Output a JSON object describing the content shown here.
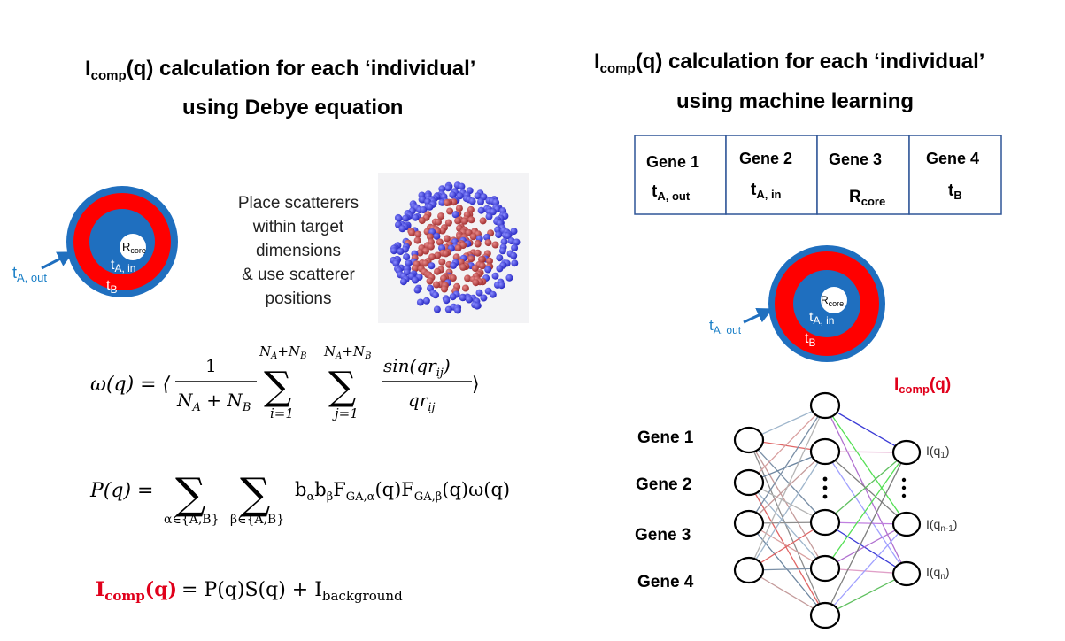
{
  "left_panel": {
    "title": {
      "line1": {
        "main": "I",
        "sub": "comp",
        "rest": "(q) calculation for each ‘individual’"
      },
      "line2": "using Debye equation"
    },
    "place_text": [
      "Place scatterers",
      "within target",
      "dimensions",
      "& use scatterer",
      "positions"
    ],
    "shell_labels": {
      "core": {
        "main": "R",
        "sub": "core"
      },
      "t_a_in": {
        "main": "t",
        "sub": "A, in"
      },
      "t_b": {
        "main": "t",
        "sub": "B"
      },
      "t_a_out": {
        "main": "t",
        "sub": "A, out"
      }
    },
    "equations": {
      "omega": {
        "lhs": "ω(q) = ⟨",
        "frac_num": "1",
        "frac_den": {
          "n_a": "N",
          "a_sub": "A",
          "plus": " + N",
          "b_sub": "B"
        },
        "sum_upper": "N",
        "sum_upper_a": "A",
        "sum_upper_plus": "+N",
        "sum_upper_b": "B",
        "sum_lower_i": "i=1",
        "sum_lower_j": "j=1",
        "sigma": "∑",
        "rhs_num": "sin(qr",
        "rhs_num_sub": "ij",
        "rhs_num_close": ")",
        "rhs_den": "qr",
        "rhs_den_sub": "ij",
        "close": "⟩"
      },
      "p": {
        "lhs": "P(q) =",
        "sum1_lower": "α∈{A,B}",
        "sum2_lower": "β∈{A,B}",
        "term": "bαbβF",
        "term_parts": [
          "b",
          "α",
          "b",
          "β",
          "F",
          "GA,α",
          "(q)F",
          "GA,β",
          "(q)ω(q)"
        ]
      },
      "icomp": {
        "lhs_main": "I",
        "lhs_sub": "comp",
        "lhs_rest": "(q)",
        "rhs": " = P(q)S(q) + I",
        "rhs_sub": "background"
      }
    }
  },
  "right_panel": {
    "title": {
      "line1": {
        "main": "I",
        "sub": "comp",
        "rest": "(q) calculation for each ‘individual’"
      },
      "line2": "using machine learning"
    },
    "genes": [
      {
        "label": "Gene 1",
        "param_main": "t",
        "param_sub": "A, out"
      },
      {
        "label": "Gene 2",
        "param_main": "t",
        "param_sub": "A, in"
      },
      {
        "label": "Gene 3",
        "param_main": "R",
        "param_sub": "core"
      },
      {
        "label": "Gene 4",
        "param_main": "t",
        "param_sub": "B"
      }
    ],
    "shell_labels": {
      "core": {
        "main": "R",
        "sub": "core"
      },
      "t_a_in": {
        "main": "t",
        "sub": "A, in"
      },
      "t_b": {
        "main": "t",
        "sub": "B"
      },
      "t_a_out": {
        "main": "t",
        "sub": "A, out"
      }
    },
    "network": {
      "output_title": {
        "main": "I",
        "sub": "comp",
        "rest": "(q)"
      },
      "input_labels": [
        "Gene 1",
        "Gene 2",
        "Gene 3",
        "Gene 4"
      ],
      "output_labels": [
        {
          "main": "I(q",
          "sub": "1",
          "rest": ")"
        },
        {
          "main": "I(q",
          "sub": "n-1",
          "rest": ")"
        },
        {
          "main": "I(q",
          "sub": "n",
          "rest": ")"
        }
      ]
    }
  },
  "colors": {
    "shell_blue": "#1f6fbf",
    "shell_red": "#ff0000",
    "label_blue": "#1a7fc7",
    "highlight_red": "#e0001b",
    "box_border": "#2f5597"
  }
}
